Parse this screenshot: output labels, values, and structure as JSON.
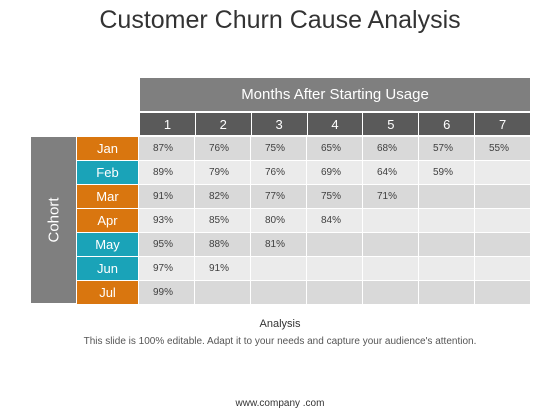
{
  "title": "Customer Churn Cause Analysis",
  "header": "Months After Starting Usage",
  "column_headers": [
    "1",
    "2",
    "3",
    "4",
    "5",
    "6",
    "7"
  ],
  "cohort_label": "Cohort",
  "rows": [
    {
      "month": "Jan",
      "values": [
        "87%",
        "76%",
        "75%",
        "65%",
        "68%",
        "57%",
        "55%"
      ]
    },
    {
      "month": "Feb",
      "values": [
        "89%",
        "79%",
        "76%",
        "69%",
        "64%",
        "59%",
        ""
      ]
    },
    {
      "month": "Mar",
      "values": [
        "91%",
        "82%",
        "77%",
        "75%",
        "71%",
        "",
        ""
      ]
    },
    {
      "month": "Apr",
      "values": [
        "93%",
        "85%",
        "80%",
        "84%",
        "",
        "",
        ""
      ]
    },
    {
      "month": "May",
      "values": [
        "95%",
        "88%",
        "81%",
        "",
        "",
        "",
        ""
      ]
    },
    {
      "month": "Jun",
      "values": [
        "97%",
        "91%",
        "",
        "",
        "",
        "",
        ""
      ]
    },
    {
      "month": "Jul",
      "values": [
        "99%",
        "",
        "",
        "",
        "",
        "",
        ""
      ]
    }
  ],
  "colors": {
    "orange": "#d9760f",
    "teal": "#1aa3b8",
    "header_gray": "#7f7f7f",
    "subheader_gray": "#5a5a5a"
  },
  "analysis_title": "Analysis",
  "analysis_text": "This slide is 100% editable. Adapt it to your needs and capture your audience's attention.",
  "footer": "www.company .com"
}
